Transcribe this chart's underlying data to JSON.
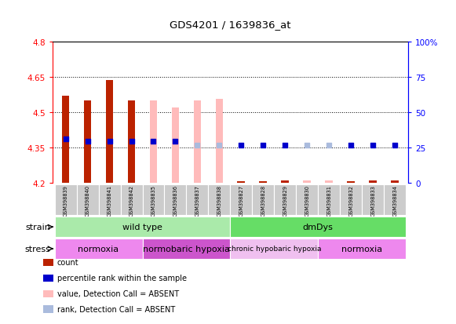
{
  "title": "GDS4201 / 1639836_at",
  "samples": [
    "GSM398839",
    "GSM398840",
    "GSM398841",
    "GSM398842",
    "GSM398835",
    "GSM398836",
    "GSM398837",
    "GSM398838",
    "GSM398827",
    "GSM398828",
    "GSM398829",
    "GSM398830",
    "GSM398831",
    "GSM398832",
    "GSM398833",
    "GSM398834"
  ],
  "bar_values": [
    4.57,
    4.55,
    4.635,
    4.55,
    4.55,
    4.52,
    4.55,
    4.555,
    4.205,
    4.205,
    4.21,
    4.21,
    4.21,
    4.205,
    4.21,
    4.21
  ],
  "bar_colors": [
    "#bb2200",
    "#bb2200",
    "#bb2200",
    "#bb2200",
    "#ffbbbb",
    "#ffbbbb",
    "#ffbbbb",
    "#ffbbbb",
    "#bb2200",
    "#bb2200",
    "#bb2200",
    "#ffbbbb",
    "#ffbbbb",
    "#bb2200",
    "#bb2200",
    "#bb2200"
  ],
  "rank_values": [
    4.385,
    4.375,
    4.375,
    4.375,
    4.375,
    4.375,
    4.36,
    4.36,
    4.36,
    4.36,
    4.36,
    4.36,
    4.36,
    4.36,
    4.36,
    4.36
  ],
  "rank_colors": [
    "#0000cc",
    "#0000cc",
    "#0000cc",
    "#0000cc",
    "#0000cc",
    "#0000cc",
    "#aabbdd",
    "#aabbdd",
    "#0000cc",
    "#0000cc",
    "#0000cc",
    "#aabbdd",
    "#aabbdd",
    "#0000cc",
    "#0000cc",
    "#0000cc"
  ],
  "ymin": 4.2,
  "ymax": 4.8,
  "y_left_ticks": [
    4.2,
    4.35,
    4.5,
    4.65,
    4.8
  ],
  "y_right_ticks": [
    0,
    25,
    50,
    75,
    100
  ],
  "dotted_lines": [
    4.35,
    4.5,
    4.65
  ],
  "strain_groups": [
    {
      "label": "wild type",
      "start": 0,
      "end": 8,
      "color": "#aaeaaa"
    },
    {
      "label": "dmDys",
      "start": 8,
      "end": 16,
      "color": "#66dd66"
    }
  ],
  "stress_groups": [
    {
      "label": "normoxia",
      "start": 0,
      "end": 4,
      "color": "#ee88ee"
    },
    {
      "label": "normobaric hypoxia",
      "start": 4,
      "end": 8,
      "color": "#cc55cc"
    },
    {
      "label": "chronic hypobaric hypoxia",
      "start": 8,
      "end": 12,
      "color": "#f0c0f0"
    },
    {
      "label": "normoxia",
      "start": 12,
      "end": 16,
      "color": "#ee88ee"
    }
  ],
  "legend_items": [
    {
      "label": "count",
      "color": "#bb2200"
    },
    {
      "label": "percentile rank within the sample",
      "color": "#0000cc"
    },
    {
      "label": "value, Detection Call = ABSENT",
      "color": "#ffbbbb"
    },
    {
      "label": "rank, Detection Call = ABSENT",
      "color": "#aabbdd"
    }
  ],
  "bar_base": 4.2,
  "rank_dot_size": 18,
  "bar_width": 0.35
}
